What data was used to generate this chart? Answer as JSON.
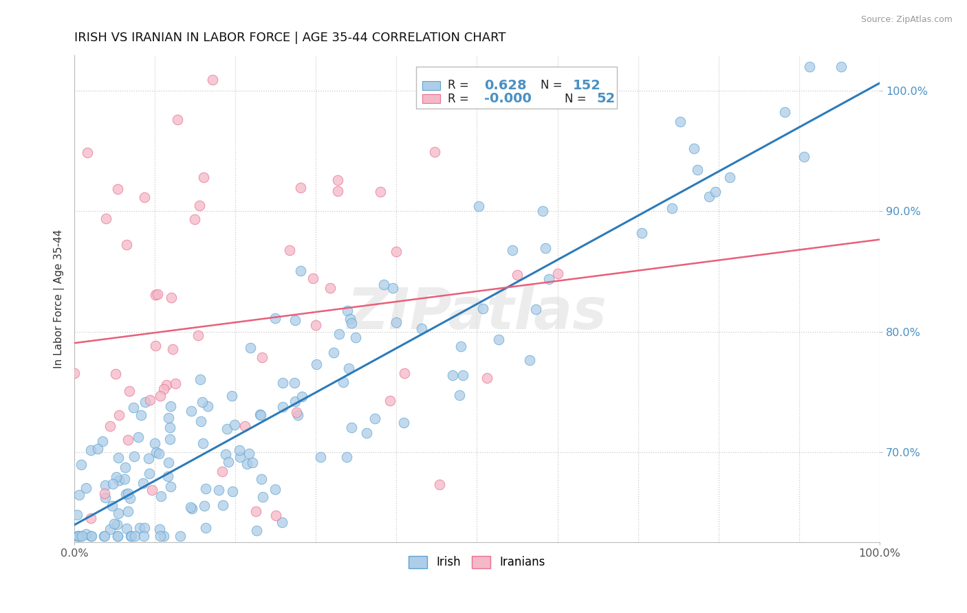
{
  "title": "IRISH VS IRANIAN IN LABOR FORCE | AGE 35-44 CORRELATION CHART",
  "source": "Source: ZipAtlas.com",
  "ylabel": "In Labor Force | Age 35-44",
  "xlim": [
    0.0,
    1.0
  ],
  "ylim": [
    0.625,
    1.03
  ],
  "ytick_labels": [
    "70.0%",
    "80.0%",
    "90.0%",
    "100.0%"
  ],
  "ytick_values": [
    0.7,
    0.8,
    0.9,
    1.0
  ],
  "xtick_labels": [
    "0.0%",
    "100.0%"
  ],
  "irish_color": "#aecde8",
  "iranian_color": "#f4b8c8",
  "irish_edge": "#5ba3d0",
  "iranian_edge": "#e87090",
  "trend_irish_color": "#2b7bba",
  "trend_iranian_color": "#e8607a",
  "legend_R_irish": "0.628",
  "legend_N_irish": "152",
  "legend_R_iranian": "-0.000",
  "legend_N_iranian": "52",
  "watermark": "ZIPatlas",
  "background_color": "#ffffff",
  "grid_color": "#c8c8c8",
  "ytick_color": "#4a90c4",
  "legend_text_color": "#000000",
  "legend_value_color": "#4a90c4"
}
